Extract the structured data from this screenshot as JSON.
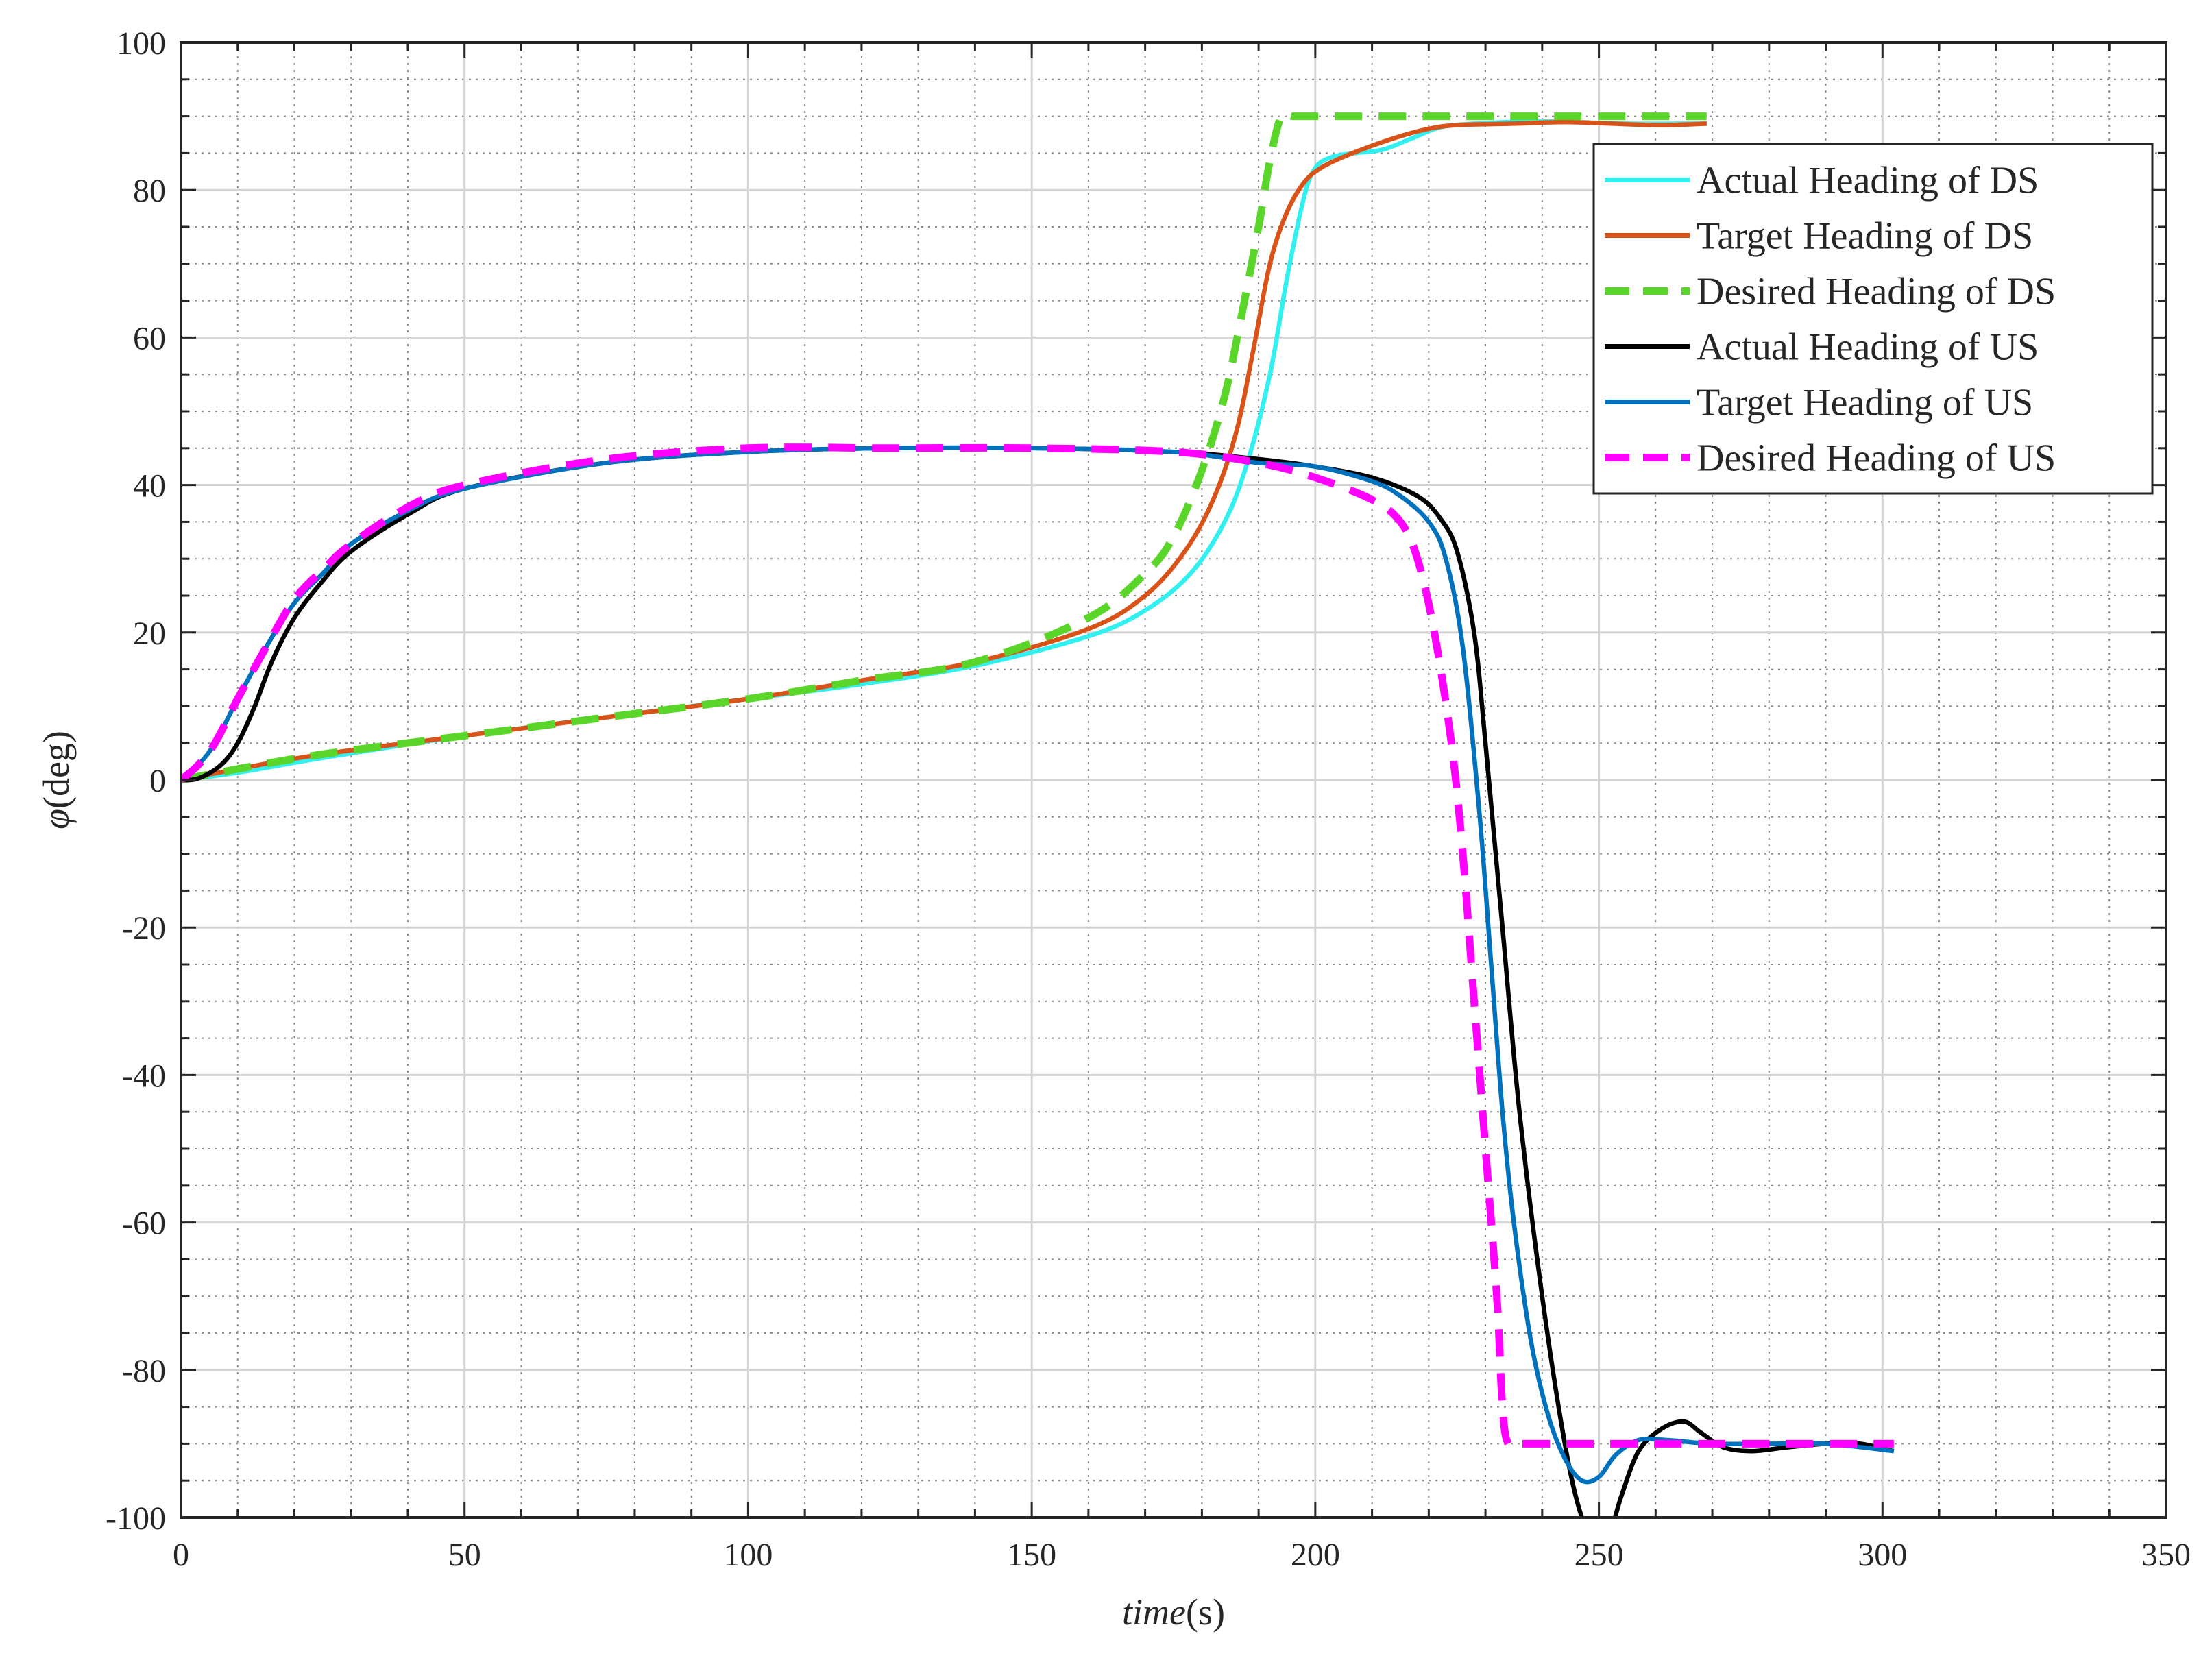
{
  "chart_data": {
    "type": "line",
    "title": "",
    "xlabel": {
      "italic": "time",
      "unit": "(s)"
    },
    "ylabel": {
      "symbol": "φ",
      "unit": "(deg)"
    },
    "xlim": [
      0,
      350
    ],
    "ylim": [
      -100,
      100
    ],
    "xticks": [
      0,
      50,
      100,
      150,
      200,
      250,
      300,
      350
    ],
    "yticks": [
      -100,
      -80,
      -60,
      -40,
      -20,
      0,
      20,
      40,
      60,
      80,
      100
    ],
    "x_tick_labels": [
      "0",
      "50",
      "100",
      "150",
      "200",
      "250",
      "300",
      "350"
    ],
    "y_tick_labels": [
      "-100",
      "-80",
      "-60",
      "-40",
      "-20",
      "0",
      "20",
      "40",
      "60",
      "80",
      "100"
    ],
    "grid": true,
    "minor_grid": true,
    "legend_position": "top-right",
    "series": [
      {
        "name": "Actual Heading of DS",
        "color": "#33f0f0",
        "style": "solid",
        "x": [
          0,
          10,
          25,
          50,
          75,
          100,
          120,
          140,
          160,
          170,
          178,
          184,
          188,
          192,
          195,
          198,
          200,
          203,
          207,
          212,
          217,
          222,
          228,
          240,
          255,
          265,
          269
        ],
        "y": [
          0,
          1,
          3,
          6,
          8.5,
          11,
          13,
          15.5,
          19.5,
          23,
          28,
          35,
          43,
          55,
          68,
          79,
          83,
          84.5,
          85,
          85.5,
          87,
          88.5,
          89,
          89.3,
          89,
          89,
          89
        ]
      },
      {
        "name": "Target Heading of DS",
        "color": "#d95319",
        "style": "solid",
        "x": [
          0,
          10,
          25,
          50,
          75,
          100,
          120,
          140,
          160,
          170,
          177,
          182,
          186,
          189,
          192,
          195,
          198,
          201,
          205,
          210,
          215,
          220,
          225,
          235,
          245,
          260,
          269
        ],
        "y": [
          0,
          1.5,
          3.5,
          6,
          8.5,
          11,
          13.5,
          16,
          20.5,
          25,
          31,
          38,
          47,
          58,
          70,
          77,
          81,
          83,
          84.5,
          86,
          87.3,
          88.3,
          88.8,
          89,
          89.2,
          88.8,
          89
        ]
      },
      {
        "name": "Desired Heading of DS",
        "color": "#5ad62a",
        "style": "dashed",
        "x": [
          0,
          10,
          25,
          50,
          75,
          100,
          120,
          140,
          160,
          170,
          175,
          180,
          184,
          187,
          190,
          192,
          194,
          196,
          200,
          220,
          240,
          269
        ],
        "y": [
          0,
          1.5,
          3.5,
          6,
          8.5,
          11,
          13.5,
          16,
          22,
          28,
          33,
          42,
          52,
          63,
          75,
          84,
          90,
          90,
          90,
          90,
          90,
          90
        ]
      },
      {
        "name": "Actual Heading of US",
        "color": "#000000",
        "style": "solid",
        "x": [
          0,
          3,
          7,
          10,
          13,
          16,
          20,
          25,
          30,
          40,
          50,
          75,
          100,
          125,
          150,
          175,
          190,
          200,
          210,
          218,
          222,
          225,
          228,
          230,
          233,
          236,
          240,
          244,
          247,
          250,
          252,
          254,
          257,
          261,
          265,
          268,
          272,
          277,
          283,
          290,
          296,
          302
        ],
        "y": [
          0,
          0.2,
          2,
          5,
          10,
          16,
          22,
          27,
          31,
          36,
          39.5,
          43,
          44.5,
          45,
          45,
          44.5,
          43.5,
          42.5,
          41,
          38.5,
          35.5,
          31,
          20,
          5,
          -20,
          -45,
          -70,
          -90,
          -100,
          -104,
          -102,
          -97,
          -91,
          -88,
          -87,
          -88.5,
          -90.5,
          -91,
          -90.5,
          -90,
          -90,
          -91
        ]
      },
      {
        "name": "Target Heading of US",
        "color": "#0072bd",
        "style": "solid",
        "x": [
          0,
          3,
          6,
          10,
          15,
          20,
          25,
          30,
          40,
          50,
          75,
          100,
          125,
          150,
          175,
          190,
          200,
          210,
          215,
          220,
          223,
          226,
          229,
          231,
          233,
          235,
          238,
          241,
          244,
          247,
          250,
          253,
          257,
          262,
          270,
          280,
          290,
          302
        ],
        "y": [
          0,
          2,
          5,
          11,
          18,
          24,
          28,
          32,
          36.5,
          39.5,
          43,
          44.5,
          45,
          45,
          44.5,
          43,
          42.5,
          40.5,
          38.5,
          35,
          30,
          18,
          -5,
          -25,
          -45,
          -60,
          -76,
          -86,
          -92,
          -95,
          -94.5,
          -91.5,
          -89.5,
          -89.5,
          -90,
          -90,
          -90,
          -91
        ]
      },
      {
        "name": "Desired Heading of US",
        "color": "#ff00ff",
        "style": "dashed",
        "x": [
          0,
          3,
          6,
          10,
          15,
          20,
          25,
          30,
          40,
          50,
          75,
          100,
          125,
          150,
          175,
          190,
          200,
          210,
          215,
          218,
          221,
          224,
          226,
          228,
          230,
          232,
          233,
          234,
          236,
          245,
          260,
          280,
          302
        ],
        "y": [
          0,
          2,
          5,
          11,
          18,
          24.5,
          28.5,
          32,
          37,
          40,
          43.5,
          45,
          45,
          45,
          44.5,
          43,
          41,
          38,
          35,
          30,
          20,
          5,
          -10,
          -30,
          -50,
          -70,
          -85,
          -90,
          -90,
          -90,
          -90,
          -90,
          -90
        ]
      }
    ]
  }
}
